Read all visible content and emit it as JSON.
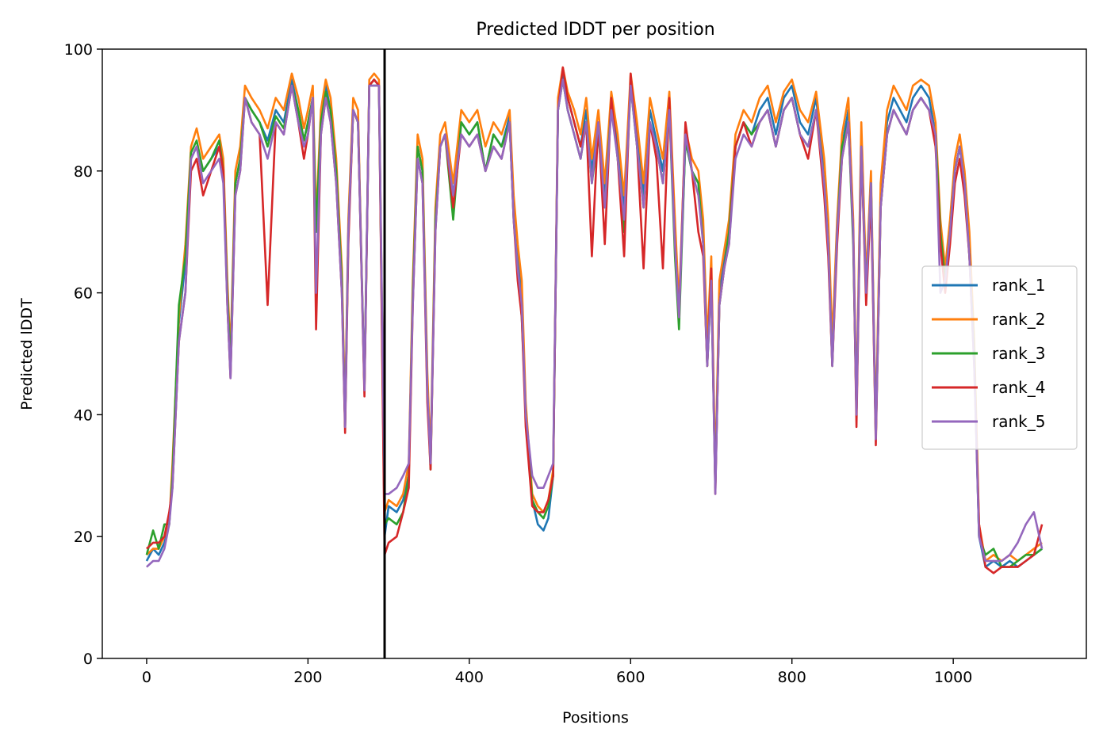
{
  "chart_data": {
    "type": "line",
    "title": "Predicted lDDT per position",
    "xlabel": "Positions",
    "ylabel": "Predicted lDDT",
    "xlim": [
      -55,
      1165
    ],
    "ylim": [
      0,
      100
    ],
    "xticks": [
      0,
      200,
      400,
      600,
      800,
      1000
    ],
    "yticks": [
      0,
      20,
      40,
      60,
      80,
      100
    ],
    "grid": false,
    "legend_position": "center-right",
    "vline_x": 295,
    "vline_color": "#000000",
    "profile_x": [
      0,
      8,
      15,
      22,
      28,
      32,
      40,
      48,
      55,
      62,
      70,
      80,
      90,
      95,
      100,
      104,
      110,
      116,
      122,
      130,
      140,
      150,
      160,
      170,
      180,
      188,
      195,
      200,
      206,
      210,
      216,
      222,
      228,
      235,
      242,
      246,
      250,
      256,
      262,
      270,
      276,
      282,
      288,
      295,
      300,
      310,
      318,
      325,
      330,
      336,
      342,
      348,
      352,
      358,
      364,
      370,
      380,
      390,
      400,
      410,
      420,
      430,
      440,
      450,
      455,
      460,
      465,
      470,
      478,
      485,
      492,
      498,
      504,
      510,
      516,
      522,
      530,
      538,
      545,
      552,
      560,
      568,
      576,
      584,
      592,
      600,
      608,
      616,
      624,
      632,
      640,
      648,
      655,
      660,
      668,
      676,
      684,
      690,
      695,
      700,
      705,
      710,
      716,
      722,
      730,
      740,
      750,
      760,
      770,
      780,
      790,
      800,
      810,
      820,
      830,
      840,
      845,
      850,
      856,
      862,
      870,
      876,
      880,
      886,
      892,
      898,
      904,
      910,
      918,
      926,
      934,
      942,
      950,
      960,
      970,
      978,
      984,
      990,
      996,
      1002,
      1008,
      1014,
      1020,
      1026,
      1032,
      1040,
      1050,
      1060,
      1070,
      1080,
      1090,
      1100,
      1110
    ],
    "series": [
      {
        "name": "rank_1",
        "color": "#1f77b4",
        "values": [
          16,
          18,
          17,
          19,
          22,
          30,
          55,
          65,
          82,
          84,
          80,
          82,
          84,
          80,
          60,
          48,
          78,
          82,
          92,
          90,
          88,
          85,
          90,
          88,
          95,
          90,
          85,
          88,
          92,
          70,
          88,
          94,
          90,
          80,
          62,
          38,
          70,
          90,
          88,
          45,
          94,
          95,
          94,
          20,
          25,
          24,
          26,
          30,
          60,
          84,
          80,
          45,
          32,
          72,
          84,
          86,
          76,
          88,
          86,
          88,
          80,
          86,
          84,
          89,
          74,
          66,
          60,
          40,
          26,
          22,
          21,
          23,
          30,
          90,
          96,
          92,
          88,
          84,
          90,
          80,
          88,
          76,
          92,
          84,
          74,
          95,
          86,
          76,
          90,
          85,
          80,
          92,
          70,
          56,
          85,
          80,
          78,
          70,
          50,
          64,
          28,
          60,
          66,
          70,
          84,
          88,
          86,
          90,
          92,
          86,
          92,
          94,
          88,
          86,
          92,
          80,
          70,
          50,
          70,
          84,
          90,
          70,
          40,
          86,
          60,
          78,
          37,
          76,
          88,
          92,
          90,
          88,
          92,
          94,
          92,
          86,
          70,
          62,
          70,
          80,
          84,
          78,
          68,
          50,
          20,
          15,
          16,
          15,
          16,
          15,
          16,
          17,
          18
        ]
      },
      {
        "name": "rank_2",
        "color": "#ff7f0e",
        "values": [
          17,
          18,
          18,
          20,
          22,
          32,
          56,
          68,
          84,
          87,
          82,
          84,
          86,
          82,
          62,
          50,
          80,
          84,
          94,
          92,
          90,
          87,
          92,
          90,
          96,
          92,
          87,
          90,
          94,
          72,
          90,
          95,
          92,
          82,
          64,
          40,
          72,
          92,
          90,
          44,
          95,
          96,
          95,
          24,
          26,
          25,
          27,
          32,
          62,
          86,
          82,
          47,
          33,
          74,
          86,
          88,
          78,
          90,
          88,
          90,
          84,
          88,
          86,
          90,
          76,
          68,
          62,
          42,
          27,
          25,
          24,
          26,
          31,
          92,
          97,
          93,
          90,
          86,
          92,
          82,
          90,
          78,
          93,
          86,
          76,
          96,
          88,
          78,
          92,
          87,
          82,
          93,
          72,
          58,
          87,
          82,
          80,
          72,
          52,
          66,
          30,
          62,
          67,
          72,
          86,
          90,
          88,
          92,
          94,
          88,
          93,
          95,
          90,
          88,
          93,
          82,
          72,
          52,
          72,
          86,
          92,
          72,
          42,
          88,
          62,
          80,
          38,
          78,
          90,
          94,
          92,
          90,
          94,
          95,
          94,
          88,
          72,
          64,
          72,
          82,
          86,
          80,
          70,
          52,
          22,
          16,
          17,
          16,
          17,
          16,
          17,
          18,
          19
        ]
      },
      {
        "name": "rank_3",
        "color": "#2ca02c",
        "values": [
          17,
          21,
          18,
          22,
          22,
          30,
          58,
          66,
          83,
          85,
          80,
          82,
          85,
          80,
          60,
          48,
          78,
          82,
          92,
          90,
          88,
          84,
          89,
          87,
          94,
          90,
          85,
          88,
          92,
          70,
          88,
          93,
          90,
          80,
          62,
          38,
          70,
          90,
          88,
          44,
          94,
          94,
          94,
          22,
          23,
          22,
          24,
          30,
          60,
          84,
          80,
          44,
          31,
          72,
          84,
          86,
          72,
          88,
          86,
          88,
          80,
          86,
          84,
          88,
          72,
          64,
          56,
          40,
          26,
          24,
          23,
          25,
          30,
          90,
          95,
          90,
          86,
          82,
          88,
          78,
          86,
          74,
          91,
          82,
          70,
          94,
          84,
          74,
          88,
          84,
          78,
          90,
          66,
          54,
          85,
          80,
          78,
          68,
          48,
          62,
          28,
          58,
          64,
          70,
          84,
          88,
          86,
          88,
          90,
          84,
          90,
          92,
          86,
          84,
          90,
          78,
          68,
          48,
          70,
          84,
          88,
          68,
          40,
          84,
          60,
          78,
          36,
          74,
          86,
          90,
          88,
          86,
          90,
          92,
          90,
          86,
          70,
          62,
          70,
          80,
          84,
          78,
          66,
          50,
          20,
          17,
          18,
          15,
          15,
          16,
          17,
          17,
          18
        ]
      },
      {
        "name": "rank_4",
        "color": "#d62728",
        "values": [
          18,
          19,
          19,
          20,
          24,
          28,
          52,
          60,
          80,
          82,
          76,
          80,
          84,
          80,
          58,
          46,
          76,
          80,
          92,
          88,
          86,
          58,
          88,
          86,
          94,
          88,
          82,
          86,
          92,
          54,
          86,
          92,
          88,
          78,
          60,
          37,
          68,
          90,
          88,
          43,
          94,
          95,
          94,
          17,
          19,
          20,
          24,
          28,
          58,
          82,
          78,
          42,
          31,
          70,
          84,
          86,
          74,
          86,
          84,
          86,
          80,
          84,
          82,
          88,
          72,
          62,
          56,
          38,
          25,
          24,
          24,
          26,
          30,
          90,
          97,
          92,
          88,
          84,
          88,
          66,
          88,
          68,
          92,
          82,
          66,
          96,
          84,
          64,
          88,
          82,
          64,
          92,
          68,
          56,
          88,
          80,
          70,
          66,
          48,
          64,
          27,
          58,
          64,
          68,
          84,
          88,
          84,
          88,
          90,
          84,
          90,
          92,
          86,
          82,
          90,
          76,
          66,
          48,
          68,
          82,
          88,
          70,
          38,
          84,
          58,
          76,
          35,
          74,
          86,
          90,
          88,
          86,
          90,
          92,
          90,
          84,
          68,
          60,
          68,
          78,
          82,
          76,
          66,
          48,
          22,
          15,
          14,
          15,
          15,
          15,
          16,
          17,
          22
        ]
      },
      {
        "name": "rank_5",
        "color": "#9467bd",
        "values": [
          15,
          16,
          16,
          18,
          22,
          28,
          52,
          60,
          82,
          84,
          78,
          80,
          82,
          78,
          58,
          46,
          76,
          80,
          92,
          88,
          86,
          82,
          88,
          86,
          94,
          88,
          84,
          86,
          92,
          60,
          86,
          92,
          88,
          78,
          60,
          38,
          70,
          90,
          88,
          44,
          94,
          94,
          94,
          27,
          27,
          28,
          30,
          32,
          58,
          82,
          78,
          44,
          32,
          70,
          84,
          86,
          76,
          86,
          84,
          86,
          80,
          84,
          82,
          88,
          72,
          64,
          58,
          40,
          30,
          28,
          28,
          30,
          32,
          90,
          95,
          90,
          86,
          82,
          88,
          78,
          88,
          74,
          90,
          82,
          72,
          94,
          84,
          74,
          88,
          84,
          78,
          90,
          68,
          56,
          86,
          80,
          76,
          68,
          48,
          62,
          27,
          58,
          64,
          68,
          82,
          86,
          84,
          88,
          90,
          84,
          90,
          92,
          86,
          84,
          90,
          78,
          68,
          48,
          70,
          82,
          88,
          70,
          40,
          84,
          60,
          78,
          36,
          74,
          86,
          90,
          88,
          86,
          90,
          92,
          90,
          86,
          60,
          62,
          70,
          80,
          84,
          78,
          66,
          48,
          20,
          16,
          16,
          16,
          17,
          19,
          22,
          24,
          18
        ]
      }
    ]
  }
}
